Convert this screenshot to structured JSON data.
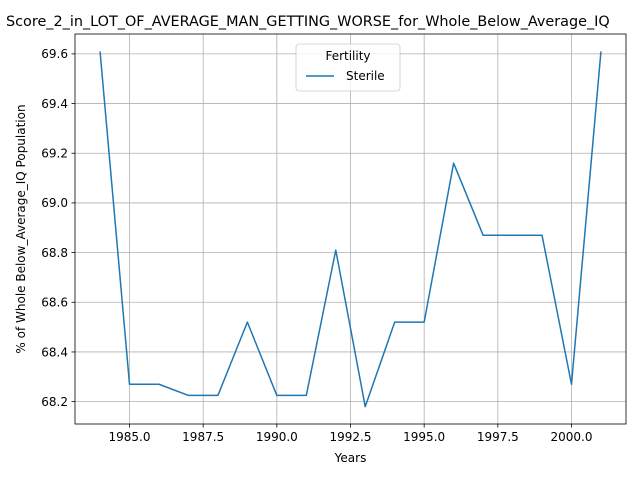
{
  "chart_data": {
    "type": "line",
    "title": "Score_2_in_LOT_OF_AVERAGE_MAN_GETTING_WORSE_for_Whole_Below_Average_IQ",
    "xlabel": "Years",
    "ylabel": "% of Whole Below_Average_IQ Population",
    "xlim": [
      1983.15,
      2001.85
    ],
    "ylim": [
      68.11,
      69.68
    ],
    "x_ticks": [
      "1985.0",
      "1987.5",
      "1990.0",
      "1992.5",
      "1995.0",
      "1997.5",
      "2000.0"
    ],
    "x_tick_values": [
      1985.0,
      1987.5,
      1990.0,
      1992.5,
      1995.0,
      1997.5,
      2000.0
    ],
    "y_ticks": [
      "68.2",
      "68.4",
      "68.6",
      "68.8",
      "69.0",
      "69.2",
      "69.4",
      "69.6"
    ],
    "y_tick_values": [
      68.2,
      68.4,
      68.6,
      68.8,
      69.0,
      69.2,
      69.4,
      69.6
    ],
    "grid": true,
    "legend": {
      "title": "Fertility",
      "placement": "top-center"
    },
    "series": [
      {
        "name": "Sterile",
        "color": "#1f77b4",
        "x": [
          1984,
          1985,
          1986,
          1987,
          1988,
          1989,
          1990,
          1991,
          1992,
          1993,
          1994,
          1995,
          1996,
          1997,
          1998,
          1999,
          2000,
          2001
        ],
        "y": [
          69.61,
          68.27,
          68.27,
          68.225,
          68.225,
          68.52,
          68.225,
          68.225,
          68.81,
          68.18,
          68.52,
          68.52,
          69.16,
          68.87,
          68.87,
          68.87,
          68.27,
          69.61
        ]
      }
    ]
  }
}
